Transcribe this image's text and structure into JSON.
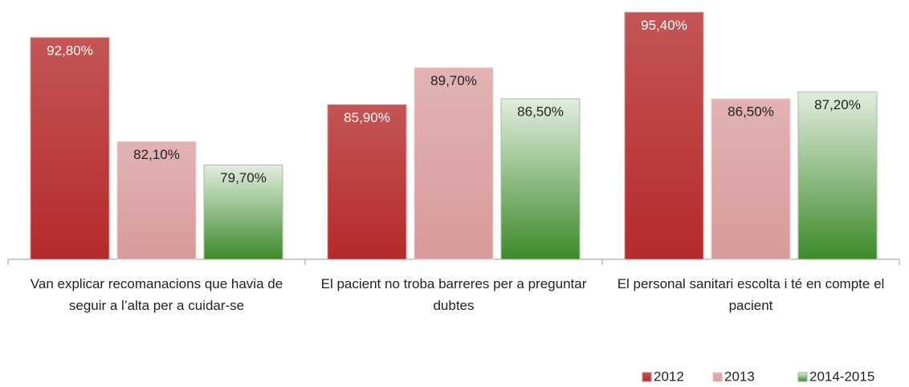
{
  "chart_data": {
    "type": "bar",
    "categories": [
      "Van explicar recomanacions que havia de seguir a l’alta per a cuidar-se",
      "El pacient no troba barreres per a preguntar dubtes",
      "El personal sanitari escolta i té en compte el pacient"
    ],
    "series": [
      {
        "name": "2012",
        "color": "#b52a2a",
        "values": [
          92.8,
          85.9,
          95.4
        ],
        "value_labels": [
          "92,80%",
          "85,90%",
          "95,40%"
        ]
      },
      {
        "name": "2013",
        "color": "#d89a9a",
        "values": [
          82.1,
          89.7,
          86.5
        ],
        "value_labels": [
          "82,10%",
          "89,70%",
          "86,50%"
        ]
      },
      {
        "name": "2014-2015",
        "color": "#3d8a2a",
        "values": [
          79.7,
          86.5,
          87.2
        ],
        "value_labels": [
          "79,70%",
          "86,50%",
          "87,20%"
        ]
      }
    ],
    "ylim": [
      70,
      96
    ],
    "legend": "bottom-right"
  }
}
